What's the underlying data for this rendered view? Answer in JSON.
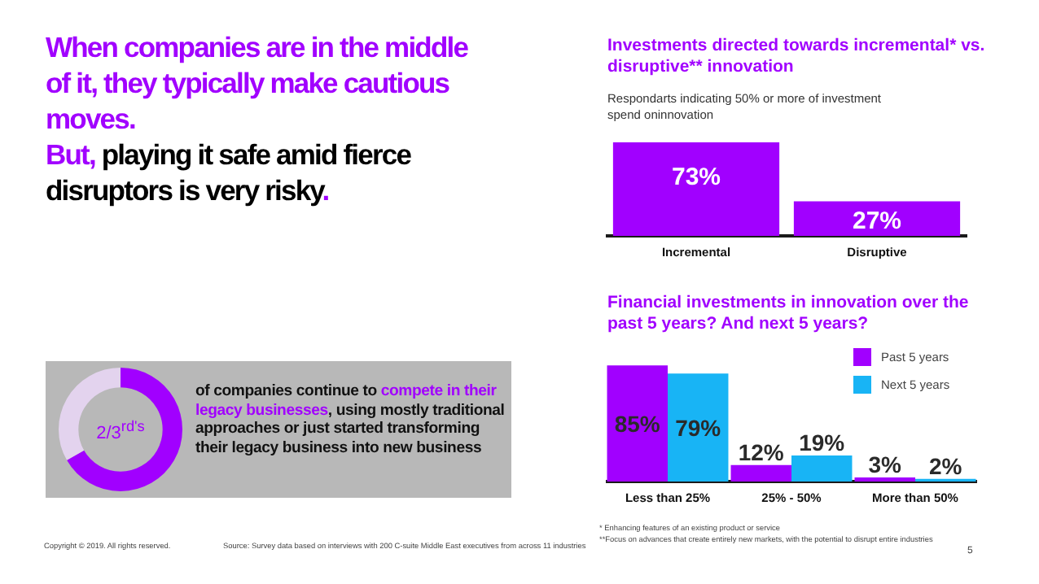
{
  "chart_data": [
    {
      "type": "other",
      "annotations": [
        "When companies are in the middle of it, they typically make cautious moves.",
        "But,",
        "playing it safe amid fierce disruptors is very risky",
        ".",
        "Copyright © 2019. All rights reserved.",
        "Source: Survey data based on interviews with 200 C-suite Middle East executives from across 11 industries",
        "5"
      ]
    },
    {
      "type": "bar",
      "title": "Investments directed towards incremental* vs. disruptive** innovation",
      "subtitle": "Respondarts indicating 50% or more of investment spend oninnovation",
      "categories": [
        "Incremental",
        "Disruptive"
      ],
      "values": [
        73,
        27
      ],
      "value_labels": [
        "73%",
        "27%"
      ],
      "color": "#a100ff",
      "annotations": [
        "* Enhancing features of an existing product or service",
        "**Focus on advances that create entirely new markets, with the potential to disrupt entire industries"
      ]
    },
    {
      "type": "donut",
      "categories": [
        null,
        null
      ],
      "values": [
        66.7,
        33.3
      ],
      "colors": [
        "#a100ff",
        "#e3d3ee"
      ],
      "annotations": [
        "2/3$^{rd's}$",
        "of companies continue to ",
        "compete in their legacy businesses",
        ", using mostly traditional approaches or just started transforming their legacy business into new business"
      ]
    },
    {
      "type": "bar",
      "title": "Financial investments in innovation over the past 5 years? And next 5 years?",
      "categories": [
        "Less than 25%",
        "25% - 50%",
        "More than 50%"
      ],
      "legend": "top right",
      "series": [
        {
          "name": "Past 5 years",
          "color": "#a100ff",
          "values": [
            85,
            12,
            3
          ],
          "value_labels": [
            "85%",
            "12%",
            "3%"
          ]
        },
        {
          "name": "Next 5 years",
          "color": "#18b4f5",
          "values": [
            79,
            19,
            2
          ],
          "value_labels": [
            "79%",
            "19%",
            "2%"
          ]
        }
      ]
    }
  ]
}
